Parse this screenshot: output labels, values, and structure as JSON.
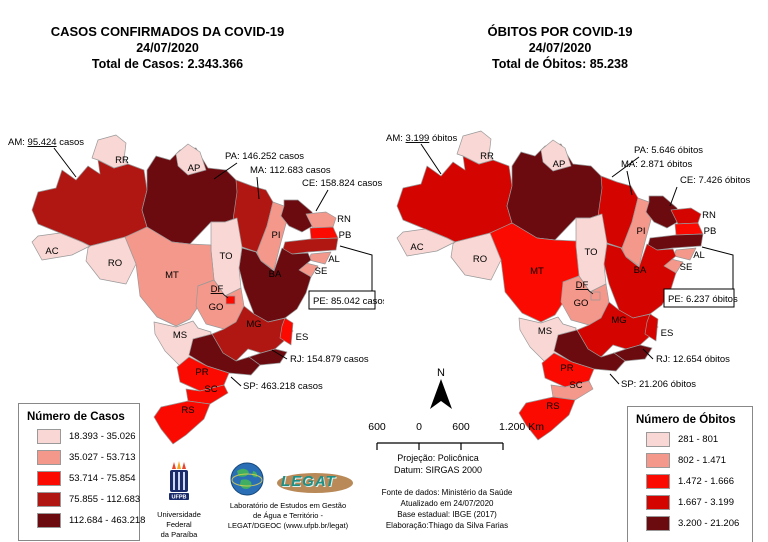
{
  "titles": {
    "left": [
      "CASOS CONFIRMADOS DA COVID-19",
      "24/07/2020",
      "Total de Casos: 2.343.366"
    ],
    "right": [
      "ÓBITOS POR COVID-19",
      "24/07/2020",
      "Total de Óbitos: 85.238"
    ]
  },
  "left_map": {
    "legend": {
      "title": "Número de Casos",
      "items": [
        {
          "range": "18.393 - 35.026",
          "color": "#f8d7d4"
        },
        {
          "range": "35.027 - 53.713",
          "color": "#f4988b"
        },
        {
          "range": "53.714 - 75.854",
          "color": "#fa0a00"
        },
        {
          "range": "75.855 - 112.683",
          "color": "#b01713"
        },
        {
          "range": "112.684 - 463.218",
          "color": "#6b0b10"
        }
      ]
    },
    "callouts": [
      {
        "id": "AM",
        "text": "AM: 95.424 casos",
        "underline": "95.424"
      },
      {
        "id": "PA",
        "text": "PA: 146.252 casos"
      },
      {
        "id": "MA",
        "text": "MA: 112.683 casos"
      },
      {
        "id": "CE",
        "text": "CE: 158.824 casos"
      },
      {
        "id": "PE",
        "text": "PE: 85.042 casos",
        "boxed": true
      },
      {
        "id": "RJ",
        "text": "RJ: 154.879 casos"
      },
      {
        "id": "SP",
        "text": "SP: 463.218 casos"
      }
    ],
    "state_labels": [
      "AC",
      "RO",
      "RR",
      "AP",
      "PI",
      "TO",
      "MT",
      "GO",
      "DF",
      "MS",
      "MG",
      "BA",
      "ES",
      "PR",
      "SC",
      "RS",
      "RN",
      "PB",
      "AL",
      "SE"
    ],
    "state_classes": {
      "AC": 1,
      "AM": 4,
      "RR": 1,
      "PA": 5,
      "AP": 1,
      "MA": 4,
      "PI": 2,
      "CE": 5,
      "RN": 2,
      "PB": 3,
      "PE": 4,
      "AL": 2,
      "SE": 2,
      "BA": 5,
      "TO": 1,
      "MT": 2,
      "RO": 1,
      "GO": 2,
      "DF": 3,
      "MS": 1,
      "MG": 4,
      "ES": 3,
      "RJ": 5,
      "SP": 5,
      "PR": 3,
      "SC": 3,
      "RS": 3
    }
  },
  "right_map": {
    "legend": {
      "title": "Número de Óbitos",
      "items": [
        {
          "range": "281 - 801",
          "color": "#f8d7d4"
        },
        {
          "range": "802 - 1.471",
          "color": "#f4988b"
        },
        {
          "range": "1.472 - 1.666",
          "color": "#fa0a00"
        },
        {
          "range": "1.667 - 3.199",
          "color": "#d40500"
        },
        {
          "range": "3.200 - 21.206",
          "color": "#6b0b10"
        }
      ]
    },
    "callouts": [
      {
        "id": "AM",
        "text": "AM: 3.199 óbitos",
        "underline": "3.199"
      },
      {
        "id": "PA",
        "text": "PA: 5.646 óbitos"
      },
      {
        "id": "MA",
        "text": "MA: 2.871 óbitos"
      },
      {
        "id": "CE",
        "text": "CE: 7.426 óbitos"
      },
      {
        "id": "PE",
        "text": "PE: 6.237 óbitos",
        "boxed": true
      },
      {
        "id": "RJ",
        "text": "RJ: 12.654 óbitos"
      },
      {
        "id": "SP",
        "text": "SP: 21.206 óbitos"
      }
    ],
    "state_labels": [
      "AC",
      "RO",
      "RR",
      "AP",
      "PI",
      "TO",
      "MT",
      "GO",
      "DF",
      "MS",
      "MG",
      "BA",
      "ES",
      "PR",
      "SC",
      "RS",
      "RN",
      "PB",
      "AL",
      "SE"
    ],
    "state_classes": {
      "AC": 1,
      "AM": 4,
      "RR": 1,
      "PA": 5,
      "AP": 1,
      "MA": 4,
      "PI": 2,
      "CE": 5,
      "RN": 4,
      "PB": 3,
      "PE": 5,
      "AL": 2,
      "SE": 2,
      "BA": 4,
      "TO": 1,
      "MT": 3,
      "RO": 1,
      "GO": 2,
      "DF": 2,
      "MS": 1,
      "MG": 4,
      "ES": 4,
      "RJ": 5,
      "SP": 5,
      "PR": 3,
      "SC": 2,
      "RS": 3
    }
  },
  "map_furniture": {
    "north_label": "N",
    "scalebar_labels": [
      "600",
      "0",
      "600",
      "1.200 Km"
    ],
    "projection_lines": [
      "Projeção: Policônica",
      "Datum: SIRGAS 2000"
    ]
  },
  "footer": {
    "source_lines": [
      "Fonte de dados: Ministério da Saúde",
      "Atualizado em 24/07/2020",
      "Base estadual: IBGE (2017)",
      "Elaboração:Thiago da Silva Farias"
    ]
  },
  "logos": {
    "ufpb": {
      "acronym": "UFPB",
      "caption_lines": [
        "Universidade Federal",
        "da Paraíba"
      ]
    },
    "legat": {
      "wordmark": "LEGAT",
      "caption_lines": [
        "Laboratório de Estudos em Gestão",
        "de Água e Território -",
        "LEGAT/DGEOC (www.ufpb.br/legat)"
      ]
    }
  }
}
